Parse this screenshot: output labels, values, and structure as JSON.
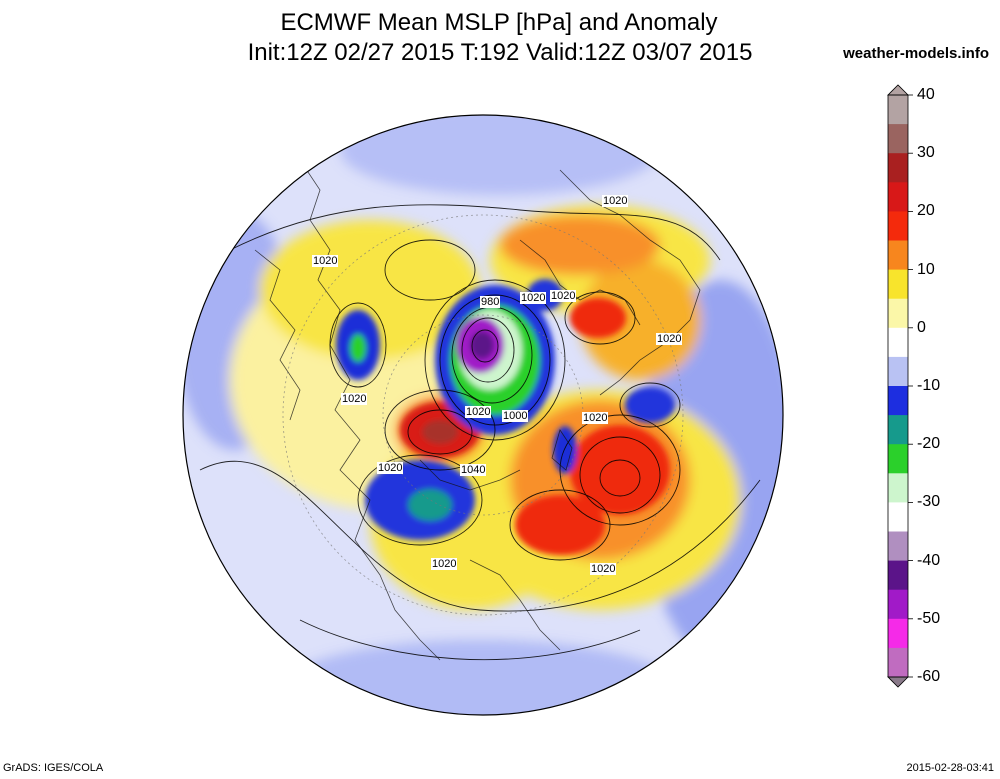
{
  "title": {
    "line1": "ECMWF Mean MSLP [hPa] and Anomaly",
    "line2": "Init:12Z 02/27 2015 T:192 Valid:12Z 03/07 2015"
  },
  "source": "weather-models.info",
  "footer": {
    "left": "GrADS: IGES/COLA",
    "right": "2015-02-28-03:41"
  },
  "colorbar": {
    "tick_labels": [
      "40",
      "30",
      "20",
      "10",
      "0",
      "-10",
      "-20",
      "-30",
      "-40",
      "-50",
      "-60"
    ],
    "tick_values": [
      40,
      30,
      20,
      10,
      0,
      -10,
      -20,
      -30,
      -40,
      -50,
      -60
    ],
    "stops": [
      {
        "value": 40,
        "color": "#b3a3a3"
      },
      {
        "value": 35,
        "color": "#9a6460"
      },
      {
        "value": 30,
        "color": "#a92020"
      },
      {
        "value": 25,
        "color": "#d81818"
      },
      {
        "value": 20,
        "color": "#f42a0c"
      },
      {
        "value": 15,
        "color": "#f7861e"
      },
      {
        "value": 10,
        "color": "#f8e42c"
      },
      {
        "value": 5,
        "color": "#fbf7a8"
      },
      {
        "value": 0,
        "color": "#ffffff"
      },
      {
        "value": -5,
        "color": "#b9c2f3"
      },
      {
        "value": -10,
        "color": "#1d2ee0"
      },
      {
        "value": -15,
        "color": "#169a8c"
      },
      {
        "value": -20,
        "color": "#2bd02b"
      },
      {
        "value": -25,
        "color": "#cdf5cd"
      },
      {
        "value": -30,
        "color": "#ffffff"
      },
      {
        "value": -35,
        "color": "#b08fc0"
      },
      {
        "value": -40,
        "color": "#5b1489"
      },
      {
        "value": -45,
        "color": "#a11ac8"
      },
      {
        "value": -50,
        "color": "#f52ae8"
      },
      {
        "value": -55,
        "color": "#c06cc0"
      },
      {
        "value": -60,
        "color": "#8a7a8a"
      }
    ]
  },
  "map": {
    "isobar_labels": [
      "1020",
      "1020",
      "980",
      "1020",
      "1020",
      "1020",
      "1000",
      "1020",
      "1020",
      "1020",
      "1040",
      "1020",
      "1020",
      "1020"
    ],
    "colors": {
      "ocean_base": "#dde1fa",
      "negative": "#3c54e6",
      "strong_negative": "#1a2fd8",
      "positive": "#fbef74",
      "orange": "#f8902a",
      "red": "#ef2a10",
      "dark_red": "#a8322a",
      "green": "#2bd02b",
      "purple": "#8a1ab0"
    }
  }
}
